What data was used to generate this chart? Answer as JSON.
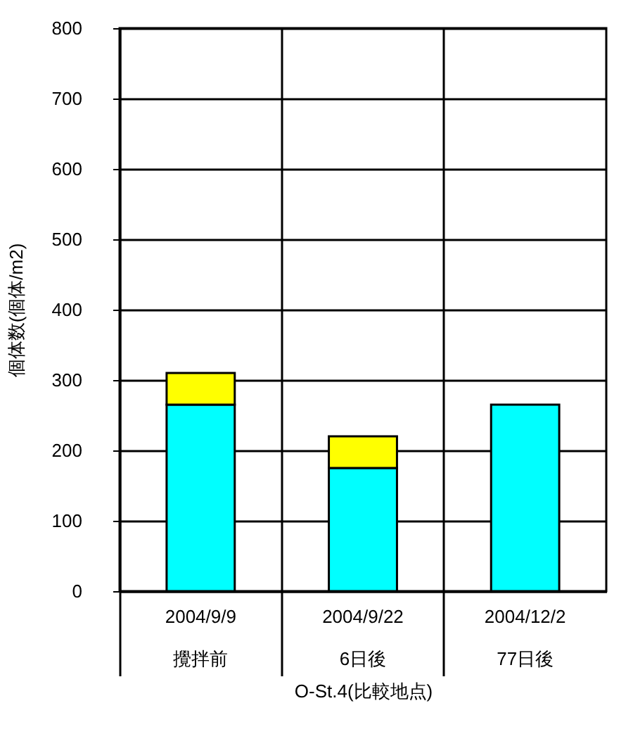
{
  "chart_data": {
    "type": "bar",
    "stacked": true,
    "categories": [
      "2004/9/9\n攪拌前",
      "2004/9/22\n6日後",
      "2004/12/2\n77日後"
    ],
    "xlabel": "O-St.4(比較地点)",
    "ylabel": "個体数(個体/m2)",
    "series": [
      {
        "color": "#00ffff",
        "values": [
          265,
          175,
          265
        ]
      },
      {
        "color": "#ffff00",
        "values": [
          45,
          45,
          null
        ]
      }
    ],
    "ylim": [
      0,
      800
    ],
    "yticks": [
      0,
      100,
      200,
      300,
      400,
      500,
      600,
      700,
      800
    ],
    "grid": true,
    "legend": false
  }
}
